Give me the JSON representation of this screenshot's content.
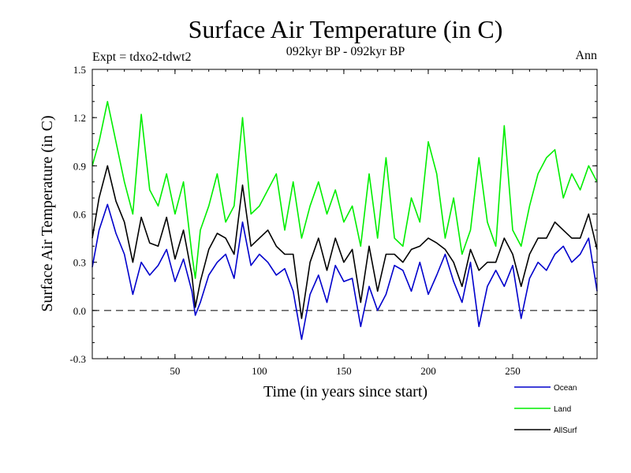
{
  "header": {
    "title": "Surface Air Temperature (in C)",
    "subtitle": "092kyr BP - 092kyr BP",
    "expt": "Expt = tdxo2-tdwt2",
    "season": "Ann"
  },
  "colors": {
    "ocean": "#0000cc",
    "land": "#00ee00",
    "allsurf": "#000000"
  },
  "chart_data": {
    "type": "line",
    "title": "Surface Air Temperature (in C)",
    "subtitle": "092kyr BP - 092kyr BP",
    "xlabel": "Time (in years since start)",
    "ylabel": "Surface Air Temperature (in C)",
    "xlim": [
      1,
      300
    ],
    "ylim": [
      -0.3,
      1.5
    ],
    "xticks": [
      50,
      100,
      150,
      200,
      250
    ],
    "yticks": [
      -0.3,
      0.0,
      0.3,
      0.6,
      0.9,
      1.2,
      1.5
    ],
    "ytick_labels": [
      "-0.3",
      "0.0",
      "0.3",
      "0.6",
      "0.9",
      "1.2",
      "1.5"
    ],
    "reference_line": {
      "y": 0.0,
      "style": "dashed"
    },
    "legend_position": "bottom-right, below plot",
    "series": [
      {
        "name": "Ocean",
        "color": "#0000cc",
        "x": [
          1,
          5,
          10,
          15,
          20,
          25,
          30,
          35,
          40,
          45,
          50,
          55,
          60,
          62,
          65,
          70,
          75,
          80,
          85,
          90,
          95,
          100,
          105,
          110,
          115,
          120,
          125,
          130,
          135,
          140,
          145,
          150,
          155,
          160,
          165,
          170,
          175,
          180,
          185,
          190,
          195,
          200,
          205,
          210,
          215,
          220,
          225,
          230,
          235,
          240,
          245,
          250,
          255,
          260,
          265,
          270,
          275,
          280,
          285,
          290,
          295,
          300
        ],
        "values": [
          0.27,
          0.5,
          0.66,
          0.48,
          0.35,
          0.1,
          0.3,
          0.22,
          0.28,
          0.38,
          0.18,
          0.32,
          0.12,
          -0.03,
          0.05,
          0.22,
          0.3,
          0.35,
          0.2,
          0.55,
          0.28,
          0.35,
          0.3,
          0.22,
          0.26,
          0.12,
          -0.18,
          0.1,
          0.22,
          0.05,
          0.28,
          0.18,
          0.2,
          -0.1,
          0.15,
          0.0,
          0.1,
          0.28,
          0.25,
          0.12,
          0.3,
          0.1,
          0.22,
          0.35,
          0.18,
          0.05,
          0.3,
          -0.1,
          0.15,
          0.25,
          0.15,
          0.28,
          -0.05,
          0.2,
          0.3,
          0.25,
          0.35,
          0.4,
          0.3,
          0.35,
          0.45,
          0.12
        ]
      },
      {
        "name": "Land",
        "color": "#00ee00",
        "x": [
          1,
          5,
          10,
          15,
          20,
          25,
          30,
          35,
          40,
          45,
          50,
          55,
          60,
          62,
          65,
          70,
          75,
          80,
          85,
          90,
          95,
          100,
          105,
          110,
          115,
          120,
          125,
          130,
          135,
          140,
          145,
          150,
          155,
          160,
          165,
          170,
          175,
          180,
          185,
          190,
          195,
          200,
          205,
          210,
          215,
          220,
          225,
          230,
          235,
          240,
          245,
          250,
          255,
          260,
          265,
          270,
          275,
          280,
          285,
          290,
          295,
          300
        ],
        "values": [
          0.9,
          1.05,
          1.3,
          1.05,
          0.8,
          0.6,
          1.22,
          0.75,
          0.65,
          0.85,
          0.6,
          0.8,
          0.35,
          0.2,
          0.5,
          0.65,
          0.85,
          0.55,
          0.65,
          1.2,
          0.6,
          0.65,
          0.75,
          0.85,
          0.5,
          0.8,
          0.45,
          0.65,
          0.8,
          0.6,
          0.75,
          0.55,
          0.65,
          0.4,
          0.85,
          0.45,
          0.95,
          0.45,
          0.4,
          0.7,
          0.55,
          1.05,
          0.85,
          0.45,
          0.7,
          0.35,
          0.5,
          0.95,
          0.55,
          0.4,
          1.15,
          0.5,
          0.4,
          0.65,
          0.85,
          0.95,
          1.0,
          0.7,
          0.85,
          0.75,
          0.9,
          0.8
        ]
      },
      {
        "name": "AllSurf",
        "color": "#000000",
        "x": [
          1,
          5,
          10,
          15,
          20,
          25,
          30,
          35,
          40,
          45,
          50,
          55,
          60,
          62,
          65,
          70,
          75,
          80,
          85,
          90,
          95,
          100,
          105,
          110,
          115,
          120,
          125,
          130,
          135,
          140,
          145,
          150,
          155,
          160,
          165,
          170,
          175,
          180,
          185,
          190,
          195,
          200,
          205,
          210,
          215,
          220,
          225,
          230,
          235,
          240,
          245,
          250,
          255,
          260,
          265,
          270,
          275,
          280,
          285,
          290,
          295,
          300
        ],
        "values": [
          0.45,
          0.7,
          0.9,
          0.68,
          0.55,
          0.3,
          0.58,
          0.42,
          0.4,
          0.58,
          0.32,
          0.5,
          0.22,
          0.02,
          0.18,
          0.38,
          0.48,
          0.45,
          0.35,
          0.78,
          0.4,
          0.45,
          0.5,
          0.4,
          0.35,
          0.35,
          -0.05,
          0.3,
          0.45,
          0.25,
          0.45,
          0.3,
          0.38,
          0.05,
          0.4,
          0.12,
          0.35,
          0.35,
          0.3,
          0.38,
          0.4,
          0.45,
          0.42,
          0.38,
          0.3,
          0.15,
          0.38,
          0.25,
          0.3,
          0.3,
          0.45,
          0.35,
          0.15,
          0.35,
          0.45,
          0.45,
          0.55,
          0.5,
          0.45,
          0.45,
          0.6,
          0.38
        ]
      }
    ]
  }
}
